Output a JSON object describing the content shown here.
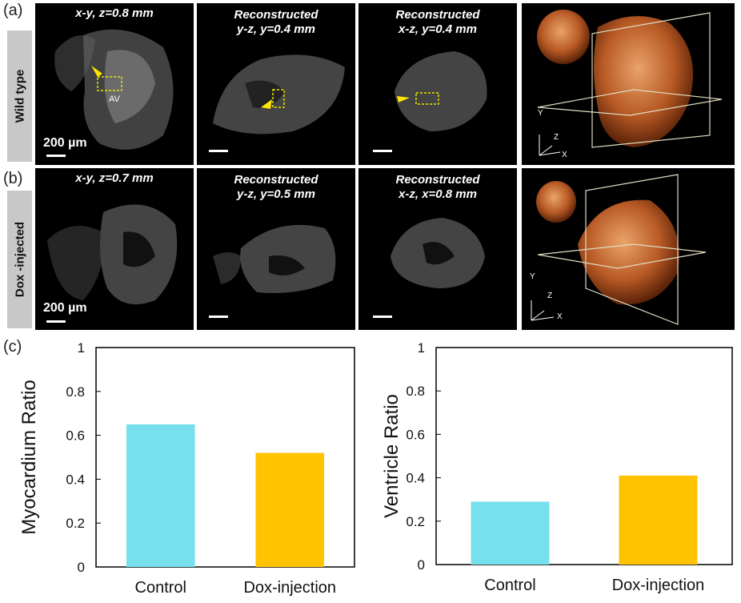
{
  "panel_labels": {
    "a": "(a)",
    "b": "(b)",
    "c": "(c)"
  },
  "rows": [
    {
      "label": "Wild type",
      "tiles": [
        {
          "caption_lines": [
            "x-y, z=0.8 mm"
          ],
          "scale_text": "200 µm",
          "annotation": "AV"
        },
        {
          "caption_lines": [
            "Reconstructed",
            "y-z, y=0.4 mm"
          ]
        },
        {
          "caption_lines": [
            "Reconstructed",
            "x-z, y=0.4 mm"
          ]
        },
        {
          "axes": [
            "Y",
            "Z",
            "X"
          ]
        }
      ]
    },
    {
      "label": "Dox -injected",
      "tiles": [
        {
          "caption_lines": [
            "x-y, z=0.7 mm"
          ],
          "scale_text": "200 µm"
        },
        {
          "caption_lines": [
            "Reconstructed",
            "y-z, y=0.5 mm"
          ]
        },
        {
          "caption_lines": [
            "Reconstructed",
            "x-z, x=0.8 mm"
          ]
        },
        {
          "axes": [
            "Y",
            "Z",
            "X"
          ]
        }
      ]
    }
  ],
  "colors": {
    "control": "#76E0EC",
    "dox": "#FFC300",
    "tissue": "#2a5ea0",
    "heart": "#c8642a"
  },
  "chart_data": [
    {
      "type": "bar",
      "categories": [
        "Control",
        "Dox-injection"
      ],
      "values": [
        0.65,
        0.52
      ],
      "title": "",
      "xlabel": "",
      "ylabel": "Myocardium Ratio",
      "ylim": [
        0,
        1
      ],
      "yticks": [
        "0",
        "0.2",
        "0.4",
        "0.6",
        "0.8",
        "1"
      ],
      "grid": false
    },
    {
      "type": "bar",
      "categories": [
        "Control",
        "Dox-injection"
      ],
      "values": [
        0.29,
        0.41
      ],
      "title": "",
      "xlabel": "",
      "ylabel": "Ventricle Ratio",
      "ylim": [
        0,
        1
      ],
      "yticks": [
        "0",
        "0.2",
        "0.4",
        "0.6",
        "0.8",
        "1"
      ],
      "grid": false
    }
  ]
}
